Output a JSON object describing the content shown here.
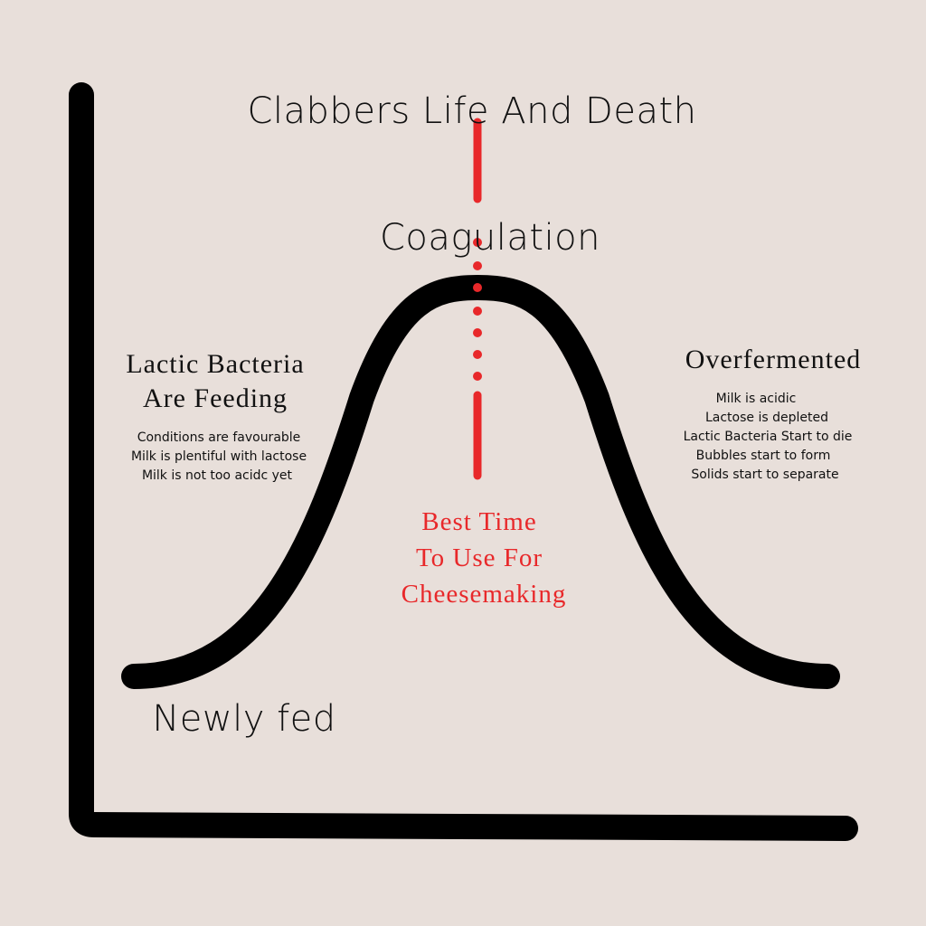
{
  "title": "Clabbers Life And Death",
  "peak": {
    "label": "Coagulation"
  },
  "feeding": {
    "heading": [
      "Lactic Bacteria",
      "Are Feeding"
    ],
    "notes": [
      "Conditions are favourable",
      "Milk is plentiful with lactose",
      "Milk is not too acidc yet"
    ]
  },
  "overfermented": {
    "heading": "Overfermented",
    "notes": [
      "Milk is acidic",
      "Lactose is depleted",
      "Lactic Bacteria Start to die",
      "Bubbles start to form",
      "Solids start to separate"
    ]
  },
  "best_time": {
    "lines": [
      "Best Time",
      "To Use For",
      "Cheesemaking"
    ]
  },
  "start": {
    "label": "Newly fed"
  }
}
